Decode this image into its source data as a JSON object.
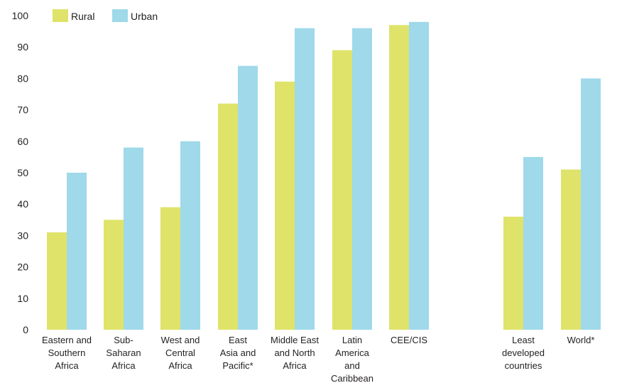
{
  "chart_data": {
    "type": "bar",
    "categories": [
      [
        "Eastern and",
        "Southern",
        "Africa"
      ],
      [
        "Sub-",
        "Saharan",
        "Africa"
      ],
      [
        "West and",
        "Central",
        "Africa"
      ],
      [
        "East",
        "Asia and",
        "Pacific*"
      ],
      [
        "Middle East",
        "and North",
        "Africa"
      ],
      [
        "Latin",
        "America",
        "and",
        "Caribbean"
      ],
      [
        "CEE/CIS"
      ],
      [
        "Least",
        "developed",
        "countries"
      ],
      [
        "World*"
      ]
    ],
    "series": [
      {
        "name": "Rural",
        "color": "#dfe36a",
        "values": [
          31,
          35,
          39,
          72,
          79,
          89,
          97,
          36,
          51
        ]
      },
      {
        "name": "Urban",
        "color": "#9fd9ea",
        "values": [
          50,
          58,
          60,
          84,
          96,
          96,
          98,
          55,
          80
        ]
      }
    ],
    "yticks": [
      "0",
      "10",
      "20",
      "30",
      "40",
      "50",
      "60",
      "70",
      "80",
      "90",
      "100"
    ],
    "ylim": [
      0,
      100
    ],
    "xlabel": "",
    "ylabel": "",
    "grid": false,
    "legend": "top-left"
  }
}
